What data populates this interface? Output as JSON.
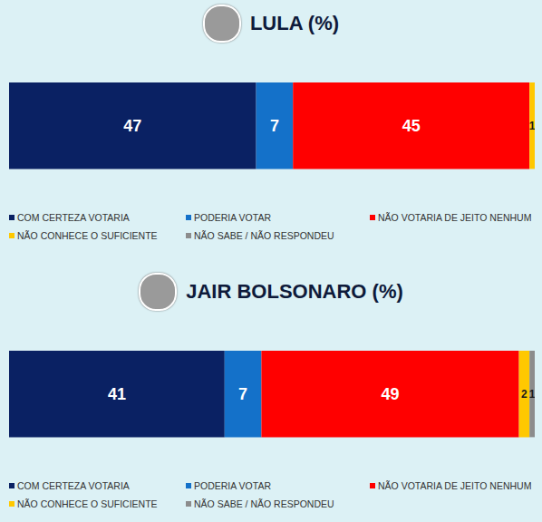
{
  "chart_data": [
    {
      "type": "bar",
      "title": "LULA (%)",
      "orientation": "horizontal",
      "stacked": true,
      "data_labels": true,
      "tick_labels": false,
      "legend": "bottom",
      "categories": [
        null
      ],
      "xlim": [
        0,
        100
      ],
      "series": [
        {
          "name": "COM CERTEZA VOTARIA",
          "color": "#0a2163",
          "values": [
            47
          ]
        },
        {
          "name": "PODERIA VOTAR",
          "color": "#1471c9",
          "values": [
            7
          ]
        },
        {
          "name": "NÃO VOTARIA DE JEITO NENHUM",
          "color": "#ff0000",
          "values": [
            45
          ]
        },
        {
          "name": "NÃO CONHECE O SUFICIENTE",
          "color": "#ffc800",
          "values": [
            1
          ]
        },
        {
          "name": "NÃO SABE / NÃO RESPONDEU",
          "color": "#8c8c8c",
          "values": [
            null
          ]
        }
      ]
    },
    {
      "type": "bar",
      "title": "JAIR BOLSONARO (%)",
      "orientation": "horizontal",
      "stacked": true,
      "data_labels": true,
      "tick_labels": false,
      "legend": "bottom",
      "categories": [
        null
      ],
      "xlim": [
        0,
        100
      ],
      "series": [
        {
          "name": "COM CERTEZA VOTARIA",
          "color": "#0a2163",
          "values": [
            41
          ]
        },
        {
          "name": "PODERIA VOTAR",
          "color": "#1471c9",
          "values": [
            7
          ]
        },
        {
          "name": "NÃO VOTARIA DE JEITO NENHUM",
          "color": "#ff0000",
          "values": [
            49
          ]
        },
        {
          "name": "NÃO CONHECE O SUFICIENTE",
          "color": "#ffc800",
          "values": [
            2
          ]
        },
        {
          "name": "NÃO SABE / NÃO RESPONDEU",
          "color": "#8c8c8c",
          "values": [
            1
          ]
        }
      ]
    }
  ]
}
